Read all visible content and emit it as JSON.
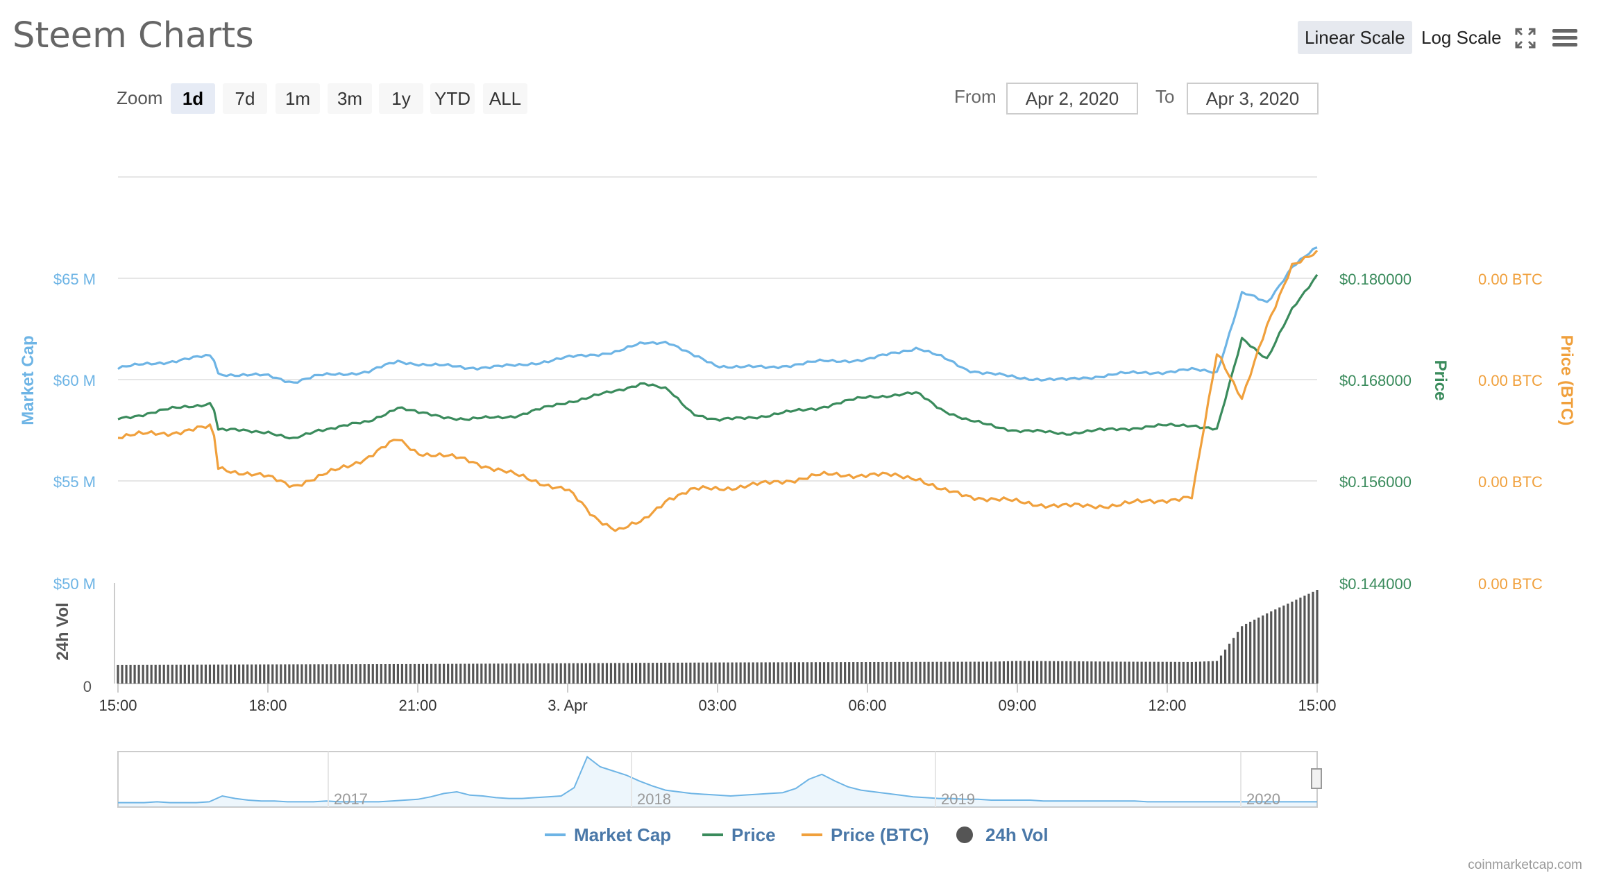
{
  "title": "Steem Charts",
  "scale_buttons": {
    "linear": "Linear Scale",
    "log": "Log Scale",
    "active": "linear"
  },
  "zoom": {
    "label": "Zoom",
    "buttons": [
      "1d",
      "7d",
      "1m",
      "3m",
      "1y",
      "YTD",
      "ALL"
    ],
    "active": "1d"
  },
  "range": {
    "from_label": "From",
    "from_value": "Apr 2, 2020",
    "to_label": "To",
    "to_value": "Apr 3, 2020"
  },
  "credit": "coinmarketcap.com",
  "icons": {
    "fullscreen": "fullscreen-icon",
    "menu": "hamburger-menu-icon"
  },
  "colors": {
    "market_cap": "#6db4e5",
    "price": "#3a8b5c",
    "price_btc": "#f0a03c",
    "volume": "#555555",
    "grid": "#e6e6e6"
  },
  "chart_data": {
    "type": "line",
    "x_ticks": [
      "15:00",
      "18:00",
      "21:00",
      "3. Apr",
      "03:00",
      "06:00",
      "09:00",
      "12:00",
      "15:00"
    ],
    "x_range_hours": [
      0,
      24
    ],
    "axes": {
      "market_cap": {
        "title": "Market Cap",
        "ticks": [
          "$65 M",
          "$60 M",
          "$55 M",
          "$50 M"
        ],
        "range": [
          50000000,
          70000000
        ]
      },
      "price": {
        "title": "Price",
        "ticks": [
          "$0.180000",
          "$0.168000",
          "$0.156000",
          "$0.144000"
        ],
        "range": [
          0.144,
          0.192
        ]
      },
      "price_btc": {
        "title": "Price (BTC)",
        "ticks": [
          "0.00 BTC",
          "0.00 BTC",
          "0.00 BTC",
          "0.00 BTC"
        ]
      },
      "volume": {
        "title": "24h Vol",
        "ticks": [
          "0"
        ]
      }
    },
    "series": [
      {
        "name": "Market Cap",
        "key": "market_cap",
        "color": "#6db4e5",
        "unit": "USD",
        "x": [
          0,
          1,
          1.9,
          2,
          3,
          3.5,
          4,
          5,
          5.6,
          6,
          7,
          8,
          9,
          10,
          10.5,
          11,
          11.5,
          12,
          13,
          14,
          15,
          16,
          16.5,
          17,
          18,
          19,
          20,
          21,
          21.5,
          22,
          22.5,
          23,
          23.5,
          24
        ],
        "values": [
          60600000,
          60900000,
          61200000,
          60300000,
          60200000,
          59900000,
          60200000,
          60400000,
          60900000,
          60800000,
          60600000,
          60700000,
          61100000,
          61400000,
          61800000,
          61900000,
          61200000,
          60700000,
          60600000,
          60900000,
          61000000,
          61600000,
          61100000,
          60500000,
          60100000,
          60000000,
          60300000,
          60400000,
          60500000,
          60400000,
          64300000,
          63800000,
          65600000,
          66500000
        ]
      },
      {
        "name": "Price",
        "key": "price",
        "color": "#3a8b5c",
        "unit": "USD",
        "x": [
          0,
          1,
          1.9,
          2,
          3,
          3.5,
          4,
          5,
          5.6,
          6,
          7,
          8,
          9,
          10,
          10.5,
          11,
          11.5,
          12,
          13,
          14,
          15,
          16,
          16.5,
          17,
          18,
          19,
          20,
          21,
          21.5,
          22,
          22.5,
          23,
          23.5,
          24
        ],
        "values": [
          0.1634,
          0.1645,
          0.1653,
          0.1621,
          0.1619,
          0.1609,
          0.1621,
          0.163,
          0.1648,
          0.1641,
          0.1633,
          0.1638,
          0.1654,
          0.1667,
          0.1677,
          0.1668,
          0.1641,
          0.1632,
          0.1638,
          0.1647,
          0.166,
          0.1664,
          0.1645,
          0.1632,
          0.162,
          0.1617,
          0.1622,
          0.1626,
          0.1627,
          0.1621,
          0.173,
          0.1705,
          0.1763,
          0.1805
        ]
      },
      {
        "name": "Price (BTC)",
        "key": "price_btc",
        "color": "#f0a03c",
        "unit": "BTC",
        "x": [
          0,
          1,
          1.9,
          2,
          3,
          3.5,
          4,
          5,
          5.6,
          6,
          7,
          8,
          9,
          9.5,
          10,
          10.5,
          11,
          11.5,
          12,
          13,
          14,
          15,
          16,
          16.5,
          17,
          18,
          19,
          20,
          21,
          21.5,
          22,
          22.5,
          23,
          23.5,
          24
        ],
        "values": [
          2.523e-05,
          2.53e-05,
          2.542e-05,
          2.458e-05,
          2.438e-05,
          2.422e-05,
          2.437e-05,
          2.48e-05,
          2.516e-05,
          2.49e-05,
          2.474e-05,
          2.441e-05,
          2.412e-05,
          2.358e-05,
          2.33e-05,
          2.345e-05,
          2.395e-05,
          2.412e-05,
          2.415e-05,
          2.425e-05,
          2.442e-05,
          2.444e-05,
          2.438e-05,
          2.41e-05,
          2.4e-05,
          2.387e-05,
          2.378e-05,
          2.381e-05,
          2.393e-05,
          2.395e-05,
          2.7e-05,
          2.6e-05,
          2.75e-05,
          2.88e-05,
          2.9e-05
        ]
      },
      {
        "name": "24h Vol",
        "key": "volume",
        "color": "#555555",
        "unit": "USD",
        "x": [
          0,
          6,
          12,
          17.5,
          18,
          19,
          20,
          21,
          21.5,
          22,
          22.5,
          23,
          24
        ],
        "values": [
          12000000,
          12500000,
          13500000,
          14000000,
          14500000,
          14300000,
          14000000,
          13900000,
          13800000,
          14500000,
          37000000,
          45000000,
          60000000
        ]
      }
    ],
    "navigator": {
      "labels": [
        "2017",
        "2018",
        "2019",
        "2020"
      ],
      "values": [
        2,
        2,
        2,
        3,
        2,
        2,
        2,
        3,
        10,
        7,
        5,
        4,
        4,
        3,
        3,
        3,
        4,
        3,
        3,
        3,
        3,
        4,
        5,
        6,
        9,
        13,
        15,
        11,
        10,
        8,
        7,
        7,
        8,
        9,
        10,
        20,
        57,
        45,
        40,
        35,
        28,
        22,
        17,
        15,
        13,
        12,
        11,
        10,
        11,
        12,
        13,
        14,
        19,
        30,
        36,
        28,
        21,
        17,
        15,
        13,
        11,
        9,
        8,
        7,
        7,
        6,
        6,
        5,
        5,
        5,
        5,
        4,
        4,
        4,
        4,
        4,
        4,
        4,
        4,
        3,
        3,
        3,
        3,
        3,
        3,
        3,
        3,
        3,
        3,
        3,
        3,
        3,
        3
      ]
    },
    "legend": [
      "Market Cap",
      "Price",
      "Price (BTC)",
      "24h Vol"
    ],
    "legend_position": "bottom",
    "grid": true
  }
}
